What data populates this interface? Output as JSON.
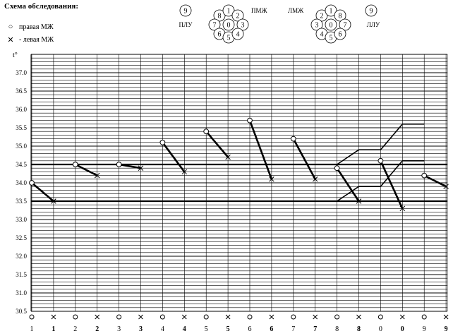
{
  "header": {
    "title": "Схема обследования:",
    "legend_right": "правая МЖ",
    "legend_left": "- левая МЖ",
    "legend_right_marker": "circle",
    "legend_left_marker": "cross"
  },
  "schemes": {
    "plu_label": "ПЛУ",
    "plu_number": "9",
    "pmzh_label": "ПМЖ",
    "pmzh_numbers": [
      "8",
      "1",
      "2",
      "7",
      "0",
      "3",
      "6",
      "5",
      "4"
    ],
    "lmzh_label": "ЛМЖ",
    "lmzh_numbers": [
      "2",
      "1",
      "8",
      "3",
      "0",
      "7",
      "4",
      "5",
      "6"
    ],
    "llu_label": "ЛЛУ",
    "llu_number": "9"
  },
  "chart_data": {
    "type": "line",
    "ylabel": "t°",
    "y_ticks": [
      "37.0",
      "36.5",
      "36.0",
      "35.5",
      "35.0",
      "34.5",
      "34.0",
      "33.5",
      "33.0",
      "32.5",
      "32.0",
      "31.5",
      "31.0",
      "30.5"
    ],
    "ylim": [
      30.5,
      37.5
    ],
    "x_markers": [
      "circle",
      "cross",
      "circle",
      "cross",
      "circle",
      "cross",
      "circle",
      "cross",
      "circle",
      "cross",
      "circle",
      "cross",
      "circle",
      "cross",
      "circle",
      "cross",
      "circle",
      "cross",
      "circle",
      "cross"
    ],
    "x_labels": [
      "1",
      "1",
      "2",
      "2",
      "3",
      "3",
      "4",
      "4",
      "5",
      "5",
      "6",
      "6",
      "7",
      "7",
      "8",
      "8",
      "0",
      "0",
      "9",
      "9"
    ],
    "reference_lines": [
      34.5,
      33.5
    ],
    "pairs": [
      {
        "point": "1",
        "right": 34.0,
        "left": 33.5
      },
      {
        "point": "2",
        "right": 34.5,
        "left": 34.2
      },
      {
        "point": "3",
        "right": 34.5,
        "left": 34.4
      },
      {
        "point": "4",
        "right": 35.1,
        "left": 34.3
      },
      {
        "point": "5",
        "right": 35.4,
        "left": 34.7
      },
      {
        "point": "6",
        "right": 35.7,
        "left": 34.1
      },
      {
        "point": "7",
        "right": 35.2,
        "left": 34.1
      },
      {
        "point": "8",
        "right": 34.4,
        "left": 33.5
      },
      {
        "point": "0",
        "right": 34.6,
        "left": 33.3
      },
      {
        "point": "9",
        "right": 34.2,
        "left": 33.9
      }
    ],
    "band_upper": {
      "x_index": [
        14,
        15,
        16,
        17,
        18
      ],
      "values": [
        34.5,
        34.9,
        34.9,
        35.6,
        35.6
      ]
    },
    "band_lower": {
      "x_index": [
        14,
        15,
        16,
        17,
        18
      ],
      "values": [
        33.5,
        33.9,
        33.9,
        34.6,
        34.6
      ]
    }
  }
}
